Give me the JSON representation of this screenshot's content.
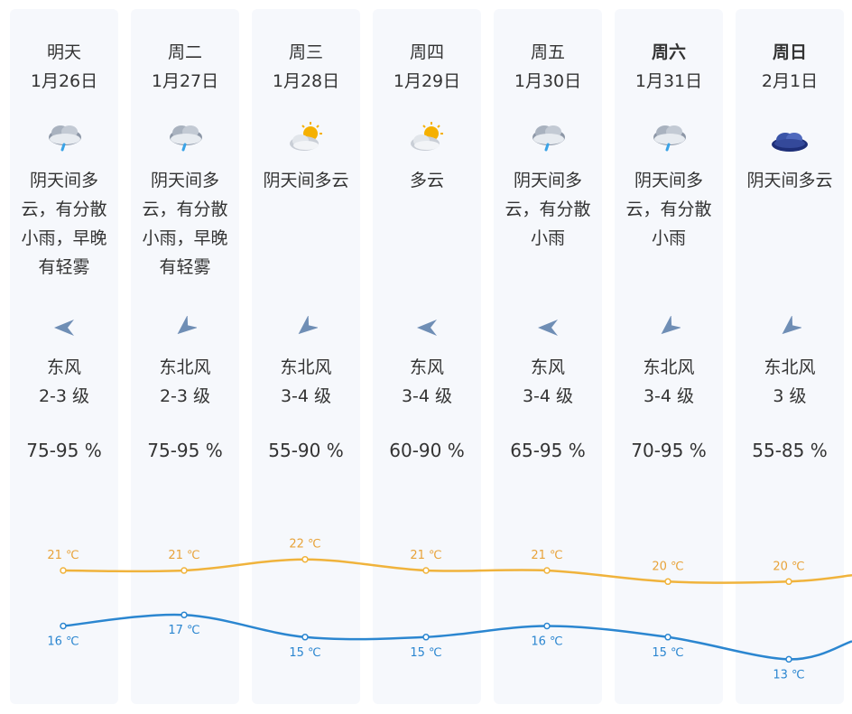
{
  "days": [
    {
      "day": "明天",
      "date": "1月26日",
      "icon": "rain-icon",
      "desc": "阴天间多云，有分散小雨，早晚有轻雾",
      "wind_dir": "东风",
      "wind_level": "2-3 级",
      "wind_arrow": "wind-arrow-east-icon",
      "humidity": "75-95 %",
      "high": "21 ℃",
      "low": "16 ℃",
      "bold": false
    },
    {
      "day": "周二",
      "date": "1月27日",
      "icon": "rain-icon",
      "desc": "阴天间多云，有分散小雨，早晚有轻雾",
      "wind_dir": "东北风",
      "wind_level": "2-3 级",
      "wind_arrow": "wind-arrow-northeast-icon",
      "humidity": "75-95 %",
      "high": "21 ℃",
      "low": "17 ℃",
      "bold": false
    },
    {
      "day": "周三",
      "date": "1月28日",
      "icon": "partly-cloudy-icon",
      "desc": "阴天间多云",
      "wind_dir": "东北风",
      "wind_level": "3-4 级",
      "wind_arrow": "wind-arrow-northeast-icon",
      "humidity": "55-90 %",
      "high": "22 ℃",
      "low": "15 ℃",
      "bold": false
    },
    {
      "day": "周四",
      "date": "1月29日",
      "icon": "partly-cloudy-icon",
      "desc": "多云",
      "wind_dir": "东风",
      "wind_level": "3-4 级",
      "wind_arrow": "wind-arrow-east-icon",
      "humidity": "60-90 %",
      "high": "21 ℃",
      "low": "15 ℃",
      "bold": false
    },
    {
      "day": "周五",
      "date": "1月30日",
      "icon": "rain-icon",
      "desc": "阴天间多云，有分散小雨",
      "wind_dir": "东风",
      "wind_level": "3-4 级",
      "wind_arrow": "wind-arrow-east-icon",
      "humidity": "65-95 %",
      "high": "21 ℃",
      "low": "16 ℃",
      "bold": false
    },
    {
      "day": "周六",
      "date": "1月31日",
      "icon": "rain-icon",
      "desc": "阴天间多云，有分散小雨",
      "wind_dir": "东北风",
      "wind_level": "3-4 级",
      "wind_arrow": "wind-arrow-northeast-icon",
      "humidity": "70-95 %",
      "high": "20 ℃",
      "low": "15 ℃",
      "bold": true
    },
    {
      "day": "周日",
      "date": "2月1日",
      "icon": "overcast-cloud-icon",
      "desc": "阴天间多云",
      "wind_dir": "东北风",
      "wind_level": "3 级",
      "wind_arrow": "wind-arrow-northeast-icon",
      "humidity": "55-85 %",
      "high": "20 ℃",
      "low": "13 ℃",
      "bold": true
    }
  ],
  "chart_data": {
    "type": "line",
    "categories": [
      "1月26日",
      "1月27日",
      "1月28日",
      "1月29日",
      "1月30日",
      "1月31日",
      "2月1日"
    ],
    "series": [
      {
        "values": [
          21,
          21,
          22,
          21,
          21,
          20,
          20
        ],
        "labels": [
          "21 ℃",
          "21 ℃",
          "22 ℃",
          "21 ℃",
          "21 ℃",
          "20 ℃",
          "20 ℃"
        ],
        "color": "#f0b33c"
      },
      {
        "values": [
          16,
          17,
          15,
          15,
          16,
          15,
          13
        ],
        "labels": [
          "16 ℃",
          "17 ℃",
          "15 ℃",
          "15 ℃",
          "16 ℃",
          "15 ℃",
          "13 ℃"
        ],
        "color": "#2b86d0"
      }
    ]
  },
  "colors": {
    "panel": "#f6f8fc",
    "high_line": "#f0b33c",
    "low_line": "#2b86d0",
    "text": "#333333"
  }
}
